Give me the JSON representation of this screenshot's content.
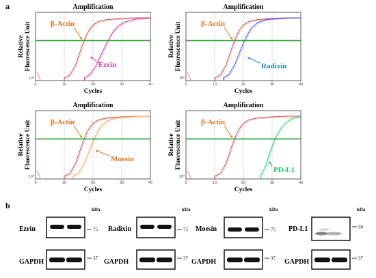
{
  "figure": {
    "label_a": "a",
    "label_b": "b"
  },
  "chart_data": [
    {
      "type": "line",
      "title": "Amplification",
      "xlabel": "Cycles",
      "ylabel": "Relative Fluorescence Unit",
      "xlim": [
        0,
        40
      ],
      "xticks": [
        0,
        10,
        20,
        30,
        40
      ],
      "ylim": [
        0,
        1
      ],
      "ytick_label": "10⁰",
      "threshold": 0.62,
      "threshold_color": "#2a9a2a",
      "ref_cycle": 17.5,
      "series": [
        {
          "name": "β-Actin",
          "color": "#cc5a5a",
          "x": [
            10,
            12,
            14,
            15,
            16,
            17,
            18,
            19,
            20,
            22,
            25,
            30,
            35,
            40
          ],
          "y": [
            0,
            0.05,
            0.22,
            0.36,
            0.5,
            0.63,
            0.74,
            0.82,
            0.88,
            0.94,
            0.97,
            0.99,
            1.0,
            1.0
          ]
        },
        {
          "name": "Ezrin",
          "color": "#e03aa0",
          "x": [
            17,
            19,
            21,
            22,
            23,
            24,
            25,
            26,
            27,
            29,
            31,
            35,
            40
          ],
          "y": [
            0,
            0.06,
            0.2,
            0.3,
            0.4,
            0.5,
            0.6,
            0.69,
            0.77,
            0.87,
            0.93,
            0.98,
            1.0
          ]
        }
      ],
      "annotations": [
        {
          "text": "β-Actin",
          "color": "#e8741e"
        },
        {
          "text": "Ezrin",
          "color": "#e03aa0"
        }
      ]
    },
    {
      "type": "line",
      "title": "Amplification",
      "xlabel": "Cycles",
      "ylabel": "Relative Fluorescence Unit",
      "xlim": [
        0,
        40
      ],
      "xticks": [
        0,
        10,
        20,
        30,
        40
      ],
      "ylim": [
        0,
        1
      ],
      "ytick_label": "10⁰",
      "threshold": 0.62,
      "threshold_color": "#2a9a2a",
      "ref_cycle": 17.5,
      "series": [
        {
          "name": "β-Actin",
          "color": "#cc5a5a",
          "x": [
            10,
            12,
            14,
            15,
            16,
            17,
            18,
            19,
            20,
            22,
            25,
            30,
            35,
            40
          ],
          "y": [
            0,
            0.05,
            0.22,
            0.36,
            0.5,
            0.63,
            0.74,
            0.82,
            0.88,
            0.94,
            0.97,
            0.99,
            1.0,
            1.0
          ]
        },
        {
          "name": "Radixin",
          "color": "#5a5ae6",
          "x": [
            13,
            15,
            17,
            18,
            19,
            20,
            21,
            22,
            23,
            25,
            28,
            32,
            36,
            40
          ],
          "y": [
            0,
            0.06,
            0.22,
            0.34,
            0.46,
            0.58,
            0.68,
            0.77,
            0.84,
            0.92,
            0.97,
            0.99,
            1.0,
            1.0
          ]
        }
      ],
      "annotations": [
        {
          "text": "β-Actin",
          "color": "#e8741e"
        },
        {
          "text": "Radixin",
          "color": "#1a82c8"
        }
      ]
    },
    {
      "type": "line",
      "title": "Amplification",
      "xlabel": "Cycles",
      "ylabel": "Relative Fluorescence Unit",
      "xlim": [
        0,
        40
      ],
      "xticks": [
        0,
        10,
        20,
        30,
        40
      ],
      "ylim": [
        0,
        1
      ],
      "ytick_label": "10⁰",
      "threshold": 0.62,
      "threshold_color": "#2a9a2a",
      "ref_cycle": 17.5,
      "series": [
        {
          "name": "β-Actin",
          "color": "#cc5a5a",
          "x": [
            10,
            12,
            14,
            15,
            16,
            17,
            18,
            19,
            20,
            22,
            25,
            30,
            35,
            40
          ],
          "y": [
            0,
            0.05,
            0.22,
            0.36,
            0.5,
            0.63,
            0.74,
            0.82,
            0.88,
            0.94,
            0.97,
            0.99,
            1.0,
            1.0
          ]
        },
        {
          "name": "Moesin",
          "color": "#f0a860",
          "x": [
            13,
            15,
            17,
            18,
            19,
            20,
            21,
            22,
            23,
            25,
            28,
            32,
            36,
            40
          ],
          "y": [
            0,
            0.06,
            0.22,
            0.34,
            0.46,
            0.58,
            0.68,
            0.77,
            0.84,
            0.92,
            0.97,
            0.99,
            1.0,
            1.0
          ]
        }
      ],
      "annotations": [
        {
          "text": "β-Actin",
          "color": "#e8741e"
        },
        {
          "text": "Moesin",
          "color": "#e8741e"
        }
      ]
    },
    {
      "type": "line",
      "title": "Amplification",
      "xlabel": "Cycles",
      "ylabel": "Relative Fluorescence Unit",
      "xlim": [
        0,
        40
      ],
      "xticks": [
        0,
        10,
        20,
        30,
        40
      ],
      "ylim": [
        0,
        1
      ],
      "ytick_label": "10⁰",
      "threshold": 0.62,
      "threshold_color": "#2a9a2a",
      "ref_cycle": 17.5,
      "series": [
        {
          "name": "β-Actin",
          "color": "#cc5a5a",
          "x": [
            10,
            12,
            14,
            15,
            16,
            17,
            18,
            19,
            20,
            22,
            25,
            30,
            35,
            40
          ],
          "y": [
            0,
            0.05,
            0.22,
            0.36,
            0.5,
            0.63,
            0.74,
            0.82,
            0.88,
            0.94,
            0.97,
            0.99,
            1.0,
            1.0
          ]
        },
        {
          "name": "PD-L1",
          "color": "#2adc6e",
          "x": [
            26,
            28,
            29,
            30,
            31,
            32,
            33,
            34,
            35,
            37,
            40
          ],
          "y": [
            0,
            0.2,
            0.36,
            0.5,
            0.62,
            0.71,
            0.79,
            0.85,
            0.9,
            0.96,
            1.0
          ]
        }
      ],
      "annotations": [
        {
          "text": "β-Actin",
          "color": "#e8741e"
        },
        {
          "text": "PD-L1",
          "color": "#18c05a"
        }
      ]
    }
  ],
  "western_blot": {
    "kda_label": "kDa",
    "loading_control": "GAPDH",
    "loading_mw": "37",
    "proteins": [
      {
        "name": "Ezrin",
        "mw": "75"
      },
      {
        "name": "Radixin",
        "mw": "75"
      },
      {
        "name": "Moesin",
        "mw": "75"
      },
      {
        "name": "PD-L1",
        "mw": "50"
      }
    ]
  }
}
